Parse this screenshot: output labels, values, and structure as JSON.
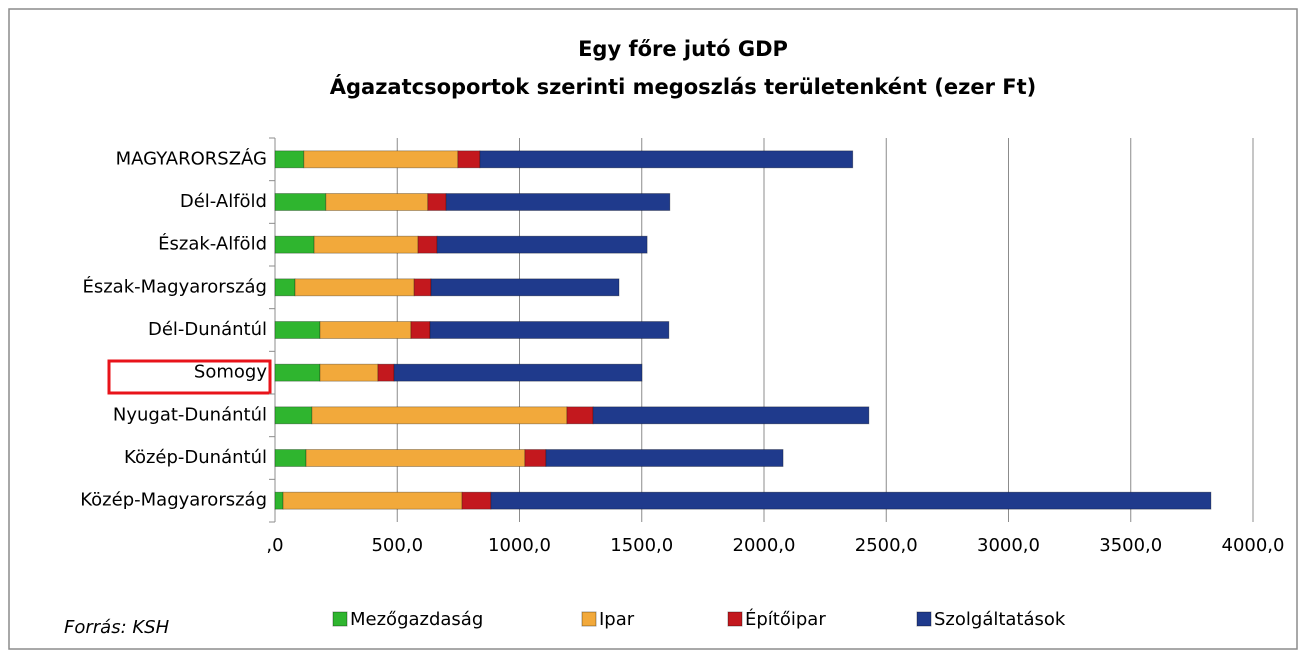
{
  "chart_data": {
    "type": "stacked_bar_horizontal",
    "title": "Egy főre jutó GDP",
    "subtitle": "Ágazatcsoportok szerinti megoszlás területenként (ezer Ft)",
    "categories": [
      "MAGYARORSZÁG",
      "Dél-Alföld",
      "Észak-Alföld",
      "Észak-Magyarország",
      "Dél-Dunántúl",
      "Somogy",
      "Nyugat-Dunántúl",
      "Közép-Dunántúl",
      "Közép-Magyarország"
    ],
    "series": [
      {
        "name": "Mezőgazdaság",
        "color": "#2fb52f",
        "values": [
          118,
          208,
          160,
          82,
          184,
          184,
          151,
          127,
          33
        ]
      },
      {
        "name": "Ipar",
        "color": "#f2a93b",
        "values": [
          630,
          417,
          425,
          487,
          372,
          237,
          1043,
          895,
          732
        ]
      },
      {
        "name": "Építőipar",
        "color": "#c3181e",
        "values": [
          90,
          75,
          78,
          69,
          78,
          66,
          107,
          86,
          118
        ]
      },
      {
        "name": "Szolgáltatások",
        "color": "#1f3a8c",
        "values": [
          1525,
          915,
          859,
          769,
          977,
          1014,
          1128,
          970,
          2945
        ]
      }
    ],
    "xlim": [
      0,
      4000
    ],
    "xticks": [
      {
        "value": 0,
        "label": ",0"
      },
      {
        "value": 500,
        "label": "500,0"
      },
      {
        "value": 1000,
        "label": "1000,0"
      },
      {
        "value": 1500,
        "label": "1500,0"
      },
      {
        "value": 2000,
        "label": "2000,0"
      },
      {
        "value": 2500,
        "label": "2500,0"
      },
      {
        "value": 3000,
        "label": "3000,0"
      },
      {
        "value": 3500,
        "label": "3500,0"
      },
      {
        "value": 4000,
        "label": "4000,0"
      }
    ],
    "grid": true,
    "legend": "bottom",
    "source": "Forrás: KSH"
  }
}
